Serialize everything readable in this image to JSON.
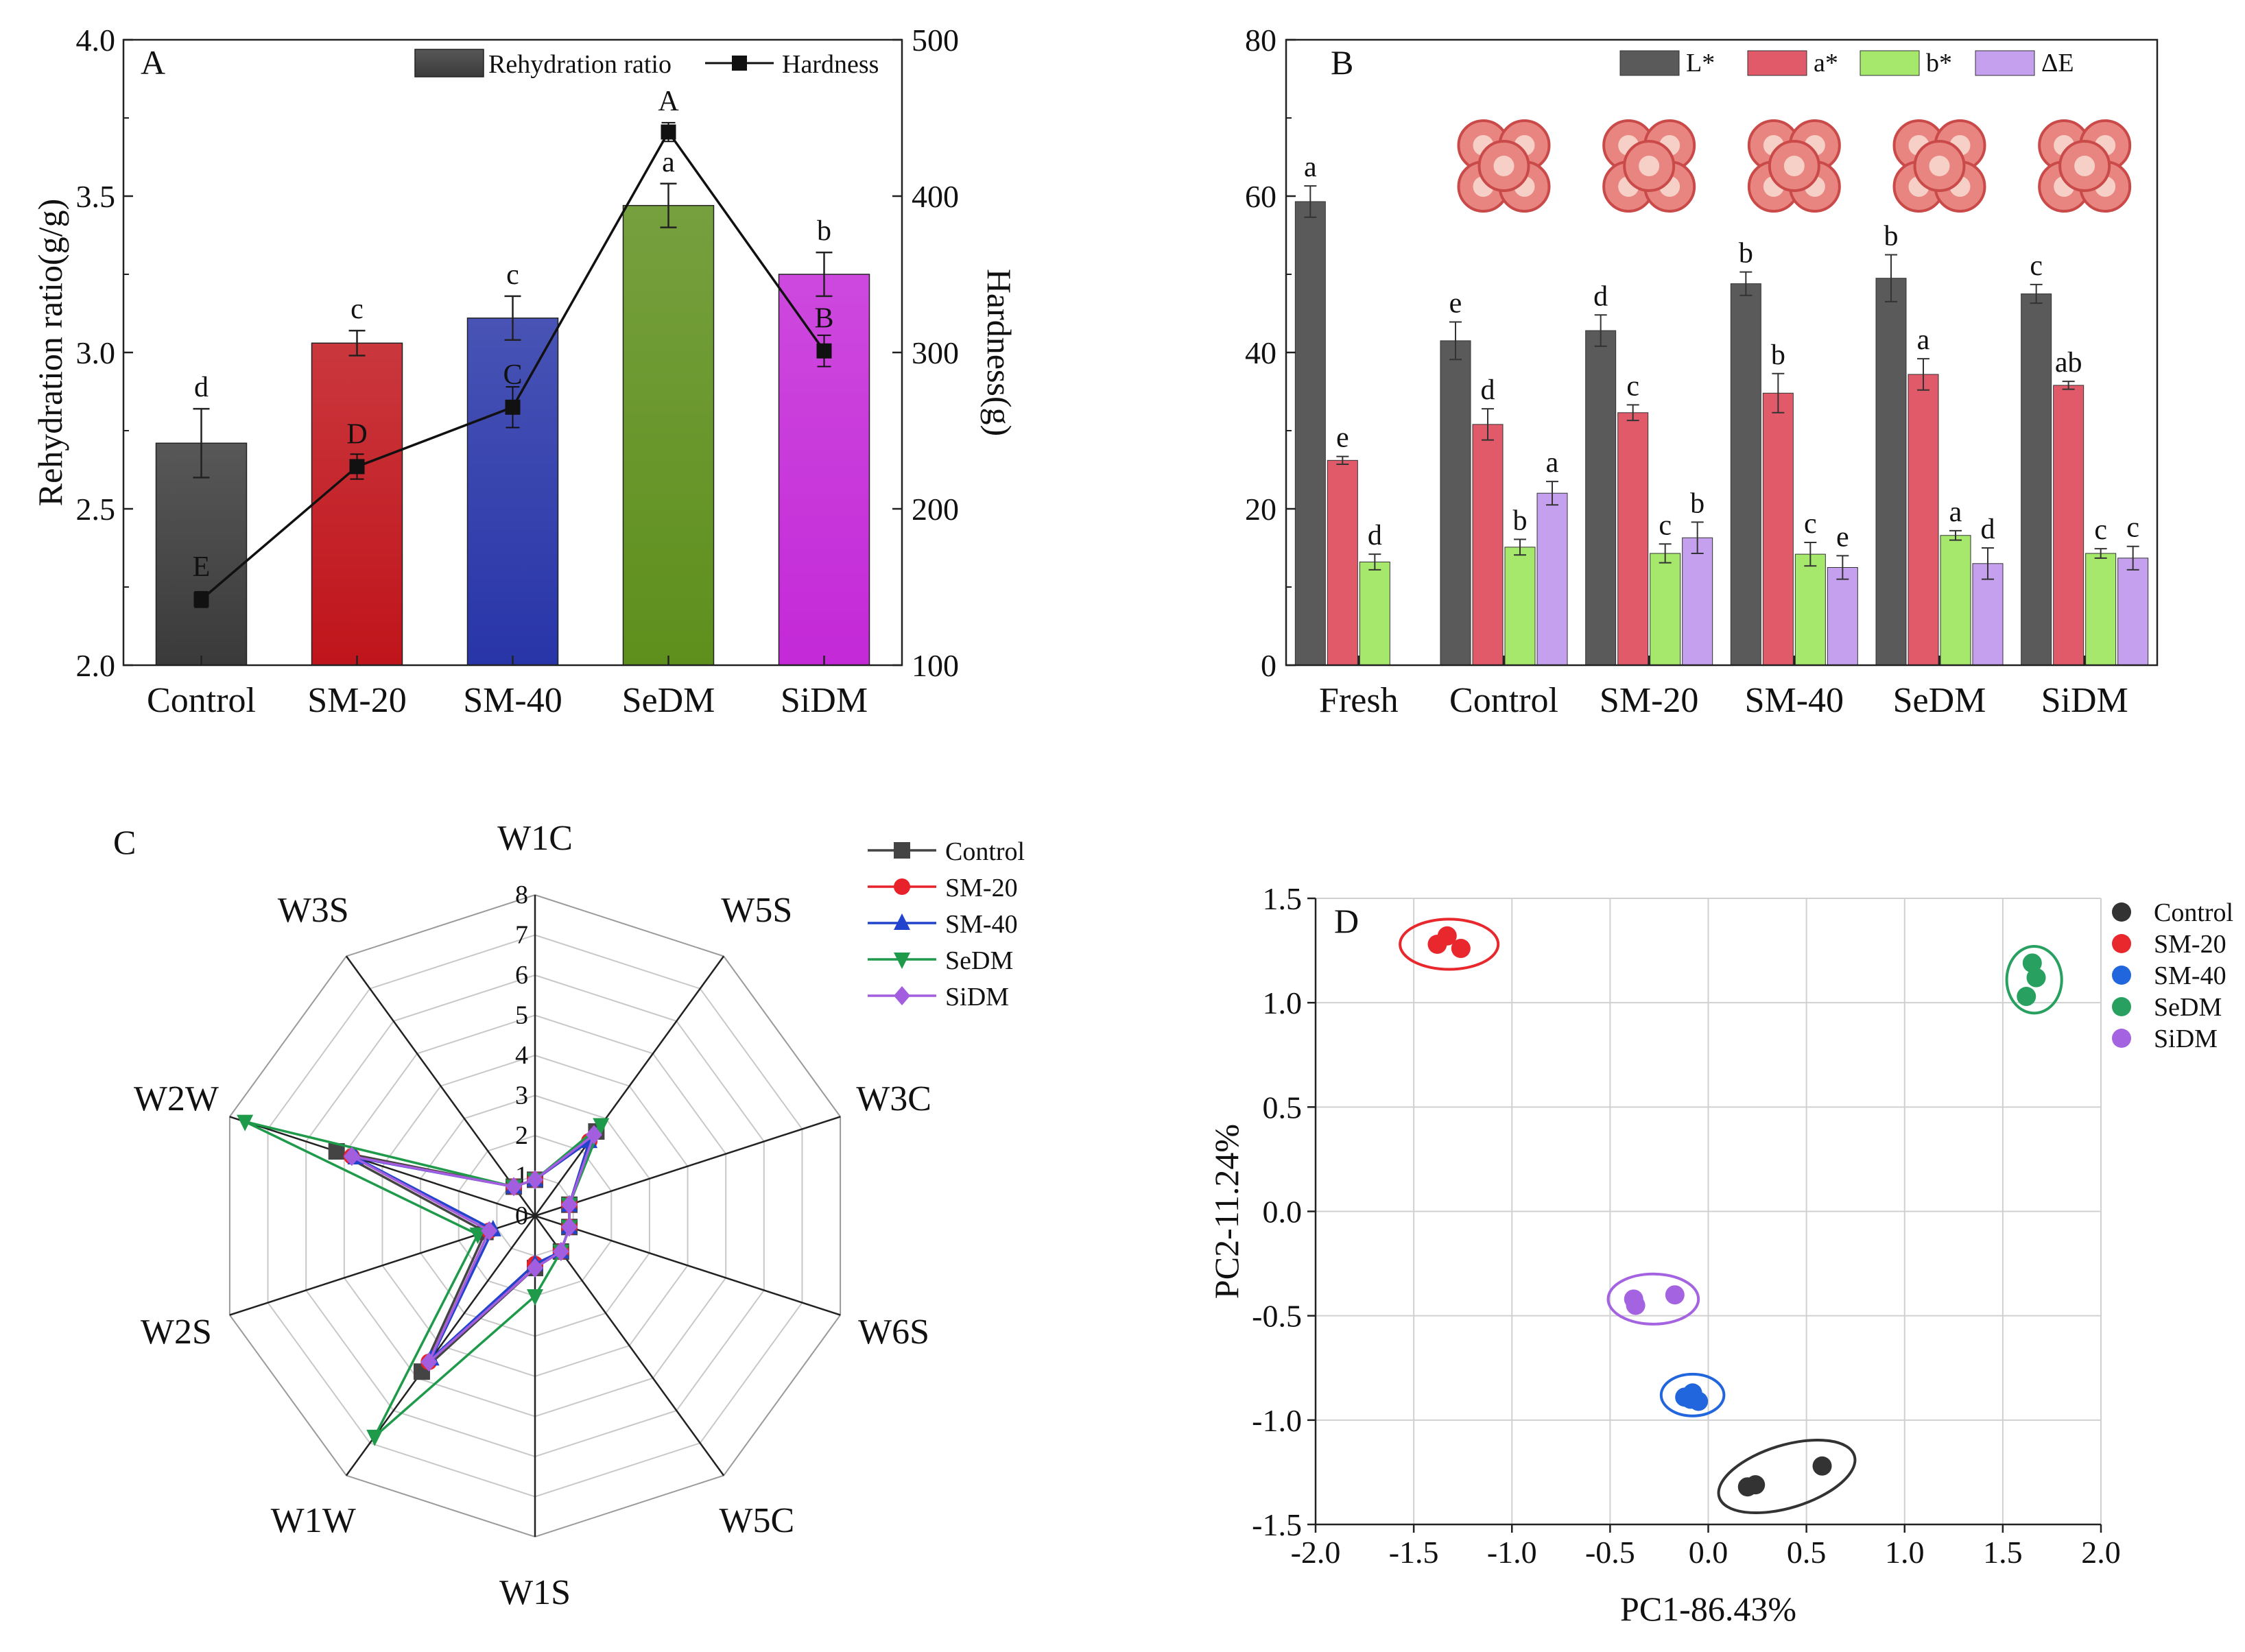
{
  "figure": {
    "panels": [
      "A",
      "B",
      "C",
      "D"
    ]
  },
  "chart_data": [
    {
      "panel": "A",
      "type": "bar",
      "categories": [
        "Control",
        "SM-20",
        "SM-40",
        "SeDM",
        "SiDM"
      ],
      "series": [
        {
          "name": "Rehydration ratio",
          "kind": "bar",
          "axis": "left",
          "values": [
            2.71,
            3.03,
            3.11,
            3.47,
            3.25
          ],
          "errors": [
            0.11,
            0.04,
            0.07,
            0.07,
            0.07
          ],
          "letters": [
            "d",
            "c",
            "c",
            "a",
            "b"
          ],
          "colors": [
            "#3a3a3a",
            "#c0141b",
            "#2835a8",
            "#5e8f1c",
            "#c429d8"
          ]
        },
        {
          "name": "Hardness",
          "kind": "line",
          "axis": "right",
          "values": [
            142,
            227,
            265,
            441,
            301
          ],
          "errors": [
            5,
            8,
            13,
            6,
            10
          ],
          "letters": [
            "E",
            "D",
            "C",
            "A",
            "B"
          ],
          "color": "#111111"
        }
      ],
      "ylabel": "Rehydration ratio(g/g)",
      "ylabel_right": "Hardness(g)",
      "ylim": [
        2.0,
        4.0
      ],
      "yticks": [
        "2.0",
        "2.5",
        "3.0",
        "3.5",
        "4.0"
      ],
      "ylim_right": [
        100,
        500
      ],
      "yticks_right": [
        "100",
        "200",
        "300",
        "400",
        "500"
      ],
      "legend": "top-right",
      "grid": false
    },
    {
      "panel": "B",
      "type": "bar",
      "categories": [
        "Fresh",
        "Control",
        "SM-20",
        "SM-40",
        "SeDM",
        "SiDM"
      ],
      "series": [
        {
          "name": "L*",
          "color": "#5a5a5a",
          "values": [
            59.3,
            41.5,
            42.8,
            48.8,
            49.5,
            47.5
          ],
          "errors": [
            2.0,
            2.4,
            2.0,
            1.5,
            3.0,
            1.2
          ],
          "letters": [
            "a",
            "e",
            "d",
            "b",
            "b",
            "c"
          ]
        },
        {
          "name": "a*",
          "color": "#e05a6a",
          "values": [
            26.2,
            30.8,
            32.3,
            34.8,
            37.2,
            35.8
          ],
          "errors": [
            0.5,
            2.0,
            1.0,
            2.5,
            2.0,
            0.5
          ],
          "letters": [
            "e",
            "d",
            "c",
            "b",
            "a",
            "ab"
          ]
        },
        {
          "name": "b*",
          "color": "#a6e86c",
          "values": [
            13.2,
            15.1,
            14.3,
            14.2,
            16.6,
            14.3
          ],
          "errors": [
            1.0,
            1.0,
            1.2,
            1.5,
            0.6,
            0.6
          ],
          "letters": [
            "d",
            "b",
            "c",
            "c",
            "a",
            "c"
          ]
        },
        {
          "name": "ΔE",
          "color": "#c5a0ef",
          "values": [
            null,
            22.0,
            16.3,
            12.5,
            13.0,
            13.7
          ],
          "errors": [
            0,
            1.5,
            2.0,
            1.5,
            2.0,
            1.5
          ],
          "letters": [
            "",
            "a",
            "b",
            "e",
            "d",
            "c"
          ]
        }
      ],
      "ylim": [
        0,
        80
      ],
      "yticks": [
        "0",
        "20",
        "40",
        "60",
        "80"
      ],
      "legend": "top-right",
      "grid": false,
      "images": [
        "Control",
        "SM-20",
        "SM-40",
        "SeDM",
        "SiDM"
      ]
    },
    {
      "panel": "C",
      "type": "radar",
      "axes": [
        "W1C",
        "W5S",
        "W3C",
        "W6S",
        "W5C",
        "W1S",
        "W1W",
        "W2S",
        "W2W",
        "W3S"
      ],
      "rmax": 8,
      "rticks": [
        "0",
        "1",
        "2",
        "3",
        "4",
        "5",
        "6",
        "7",
        "8"
      ],
      "series": [
        {
          "name": "Control",
          "color": "#444444",
          "marker": "square",
          "values": [
            0.9,
            2.6,
            0.9,
            0.9,
            1.1,
            1.3,
            4.8,
            1.3,
            5.2,
            0.9
          ]
        },
        {
          "name": "SM-20",
          "color": "#e8222a",
          "marker": "circle",
          "values": [
            0.9,
            2.3,
            0.9,
            0.9,
            1.1,
            1.2,
            4.5,
            1.2,
            4.8,
            0.9
          ]
        },
        {
          "name": "SM-40",
          "color": "#2244cc",
          "marker": "triangle-up",
          "values": [
            0.9,
            2.3,
            0.9,
            0.9,
            1.1,
            1.2,
            4.4,
            1.1,
            4.7,
            0.9
          ]
        },
        {
          "name": "SeDM",
          "color": "#1e9a4a",
          "marker": "triangle-down",
          "values": [
            0.9,
            2.8,
            0.9,
            0.9,
            1.1,
            2.0,
            6.8,
            1.5,
            7.6,
            0.9
          ]
        },
        {
          "name": "SiDM",
          "color": "#a35ee0",
          "marker": "diamond",
          "values": [
            0.9,
            2.5,
            0.9,
            0.9,
            1.1,
            1.3,
            4.5,
            1.2,
            4.8,
            0.9
          ]
        }
      ],
      "legend": "top-right"
    },
    {
      "panel": "D",
      "type": "scatter",
      "xlabel": "PC1-86.43%",
      "ylabel": "PC2-11.24%",
      "xlim": [
        -2.0,
        2.0
      ],
      "ylim": [
        -1.5,
        1.5
      ],
      "xticks": [
        "-2.0",
        "-1.5",
        "-1.0",
        "-0.5",
        "0.0",
        "0.5",
        "1.0",
        "1.5",
        "2.0"
      ],
      "yticks": [
        "-1.5",
        "-1.0",
        "-0.5",
        "0.0",
        "0.5",
        "1.0",
        "1.5"
      ],
      "grid": true,
      "legend": "top-right",
      "series": [
        {
          "name": "Control",
          "color": "#333333",
          "points": [
            [
              0.2,
              -1.32
            ],
            [
              0.24,
              -1.31
            ],
            [
              0.58,
              -1.22
            ]
          ],
          "ellipse": [
            0.4,
            -1.27,
            0.36,
            0.15,
            -17
          ]
        },
        {
          "name": "SM-20",
          "color": "#e8282c",
          "points": [
            [
              -1.38,
              1.28
            ],
            [
              -1.33,
              1.32
            ],
            [
              -1.26,
              1.26
            ]
          ],
          "ellipse": [
            -1.32,
            1.28,
            0.25,
            0.12,
            0
          ]
        },
        {
          "name": "SM-40",
          "color": "#2266dd",
          "points": [
            [
              -0.12,
              -0.89
            ],
            [
              -0.08,
              -0.87
            ],
            [
              -0.05,
              -0.91
            ],
            [
              -0.09,
              -0.9
            ]
          ],
          "ellipse": [
            -0.08,
            -0.88,
            0.16,
            0.1,
            0
          ]
        },
        {
          "name": "SeDM",
          "color": "#28a060",
          "points": [
            [
              1.65,
              1.19
            ],
            [
              1.67,
              1.12
            ],
            [
              1.62,
              1.03
            ]
          ],
          "ellipse": [
            1.66,
            1.11,
            0.14,
            0.16,
            0
          ]
        },
        {
          "name": "SiDM",
          "color": "#a463e0",
          "points": [
            [
              -0.38,
              -0.42
            ],
            [
              -0.37,
              -0.45
            ],
            [
              -0.17,
              -0.4
            ]
          ],
          "ellipse": [
            -0.28,
            -0.42,
            0.23,
            0.12,
            0
          ]
        }
      ]
    }
  ]
}
